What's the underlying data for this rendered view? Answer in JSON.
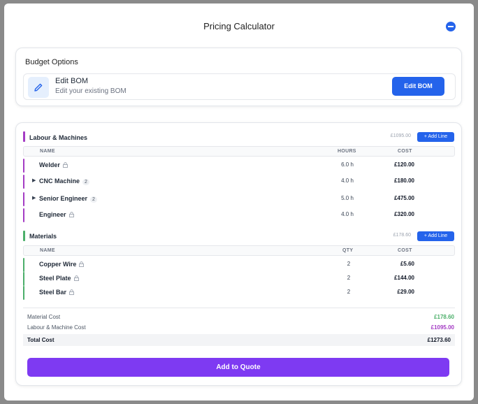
{
  "modal": {
    "title": "Pricing Calculator"
  },
  "budget": {
    "title": "Budget Options",
    "bom_name": "Edit BOM",
    "bom_desc": "Edit your existing BOM",
    "edit_button": "Edit BOM"
  },
  "labour": {
    "title": "Labour & Machines",
    "total": "£1095.00",
    "add_label": "+ Add Line",
    "color": "#a43cc4",
    "headers": {
      "name": "NAME",
      "hours": "HOURS",
      "cost": "COST"
    },
    "rows": [
      {
        "name": "Welder",
        "hours": "6.0 h",
        "cost": "£120.00"
      },
      {
        "name": "CNC Machine",
        "badge": "2",
        "hours": "4.0 h",
        "cost": "£180.00"
      },
      {
        "name": "Senior Engineer",
        "badge": "2",
        "hours": "5.0 h",
        "cost": "£475.00"
      },
      {
        "name": "Engineer",
        "hours": "4.0 h",
        "cost": "£320.00"
      }
    ]
  },
  "materials": {
    "title": "Materials",
    "total": "£178.60",
    "add_label": "+ Add Line",
    "color": "#4caf6a",
    "headers": {
      "name": "NAME",
      "qty": "QTY",
      "cost": "COST"
    },
    "rows": [
      {
        "name": "Copper Wire",
        "qty": "2",
        "cost": "£5.60"
      },
      {
        "name": "Steel Plate",
        "qty": "2",
        "cost": "£144.00"
      },
      {
        "name": "Steel Bar",
        "qty": "2",
        "cost": "£29.00"
      }
    ]
  },
  "summary": {
    "material_label": "Material Cost",
    "material_value": "£178.60",
    "labour_label": "Labour & Machine Cost",
    "labour_value": "£1095.00",
    "total_label": "Total Cost",
    "total_value": "£1273.60"
  },
  "actions": {
    "add_to_quote": "Add to Quote"
  },
  "colors": {
    "accent_blue": "#2463eb",
    "accent_purple": "#7e3af2",
    "labour": "#a43cc4",
    "materials": "#4caf6a"
  }
}
